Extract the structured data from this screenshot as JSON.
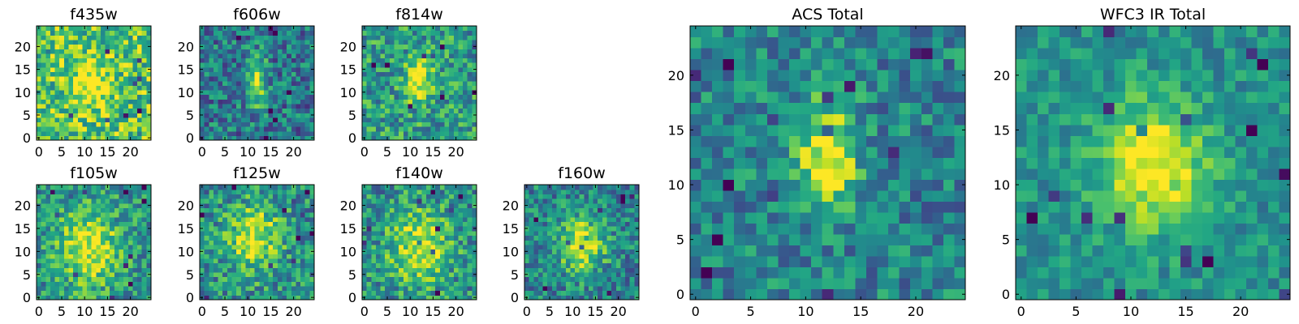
{
  "figure": {
    "background": "#ffffff"
  },
  "colormap": "viridis",
  "chart_data": [
    {
      "type": "heatmap",
      "title": "f435w",
      "xticks": [
        "0",
        "5",
        "10",
        "15",
        "20"
      ],
      "yticks": [
        "0",
        "5",
        "10",
        "15",
        "20"
      ],
      "xlim": [
        -0.5,
        24.5
      ],
      "ylim": [
        -0.5,
        24.5
      ],
      "grid_size": 25,
      "source_center": [
        11.5,
        12
      ],
      "source_sigma": [
        3.0,
        4.0
      ],
      "peak_level": 0.3,
      "background_level": 0.72,
      "noise_level": 0.28
    },
    {
      "type": "heatmap",
      "title": "f606w",
      "xticks": [
        "0",
        "5",
        "10",
        "15",
        "20"
      ],
      "yticks": [
        "0",
        "5",
        "10",
        "15",
        "20"
      ],
      "xlim": [
        -0.5,
        24.5
      ],
      "ylim": [
        -0.5,
        24.5
      ],
      "grid_size": 25,
      "source_center": [
        12,
        12.5
      ],
      "source_sigma": [
        1.5,
        4.0
      ],
      "peak_level": 0.55,
      "background_level": 0.4,
      "noise_level": 0.26
    },
    {
      "type": "heatmap",
      "title": "f814w",
      "xticks": [
        "0",
        "5",
        "10",
        "15",
        "20"
      ],
      "yticks": [
        "0",
        "5",
        "10",
        "15",
        "20"
      ],
      "xlim": [
        -0.5,
        24.5
      ],
      "ylim": [
        -0.5,
        24.5
      ],
      "grid_size": 25,
      "source_center": [
        12,
        12.5
      ],
      "source_sigma": [
        2.0,
        3.5
      ],
      "peak_level": 0.45,
      "background_level": 0.55,
      "noise_level": 0.26
    },
    {
      "type": "heatmap",
      "title": "f105w",
      "xticks": [
        "0",
        "5",
        "10",
        "15",
        "20"
      ],
      "yticks": [
        "0",
        "5",
        "10",
        "15",
        "20"
      ],
      "xlim": [
        -0.5,
        24.5
      ],
      "ylim": [
        -0.5,
        24.5
      ],
      "grid_size": 25,
      "source_center": [
        11,
        11
      ],
      "source_sigma": [
        5.0,
        6.0
      ],
      "peak_level": 0.45,
      "background_level": 0.5,
      "noise_level": 0.24
    },
    {
      "type": "heatmap",
      "title": "f125w",
      "xticks": [
        "0",
        "5",
        "10",
        "15",
        "20"
      ],
      "yticks": [
        "0",
        "5",
        "10",
        "15",
        "20"
      ],
      "xlim": [
        -0.5,
        24.5
      ],
      "ylim": [
        -0.5,
        24.5
      ],
      "grid_size": 25,
      "source_center": [
        11.5,
        13
      ],
      "source_sigma": [
        4.0,
        5.0
      ],
      "peak_level": 0.45,
      "background_level": 0.5,
      "noise_level": 0.26
    },
    {
      "type": "heatmap",
      "title": "f140w",
      "xticks": [
        "0",
        "5",
        "10",
        "15",
        "20"
      ],
      "yticks": [
        "0",
        "5",
        "10",
        "15",
        "20"
      ],
      "xlim": [
        -0.5,
        24.5
      ],
      "ylim": [
        -0.5,
        24.5
      ],
      "grid_size": 25,
      "source_center": [
        12,
        11
      ],
      "source_sigma": [
        4.5,
        5.5
      ],
      "peak_level": 0.45,
      "background_level": 0.5,
      "noise_level": 0.26
    },
    {
      "type": "heatmap",
      "title": "f160w",
      "xticks": [
        "0",
        "5",
        "10",
        "15",
        "20"
      ],
      "yticks": [
        "0",
        "5",
        "10",
        "15",
        "20"
      ],
      "xlim": [
        -0.5,
        24.5
      ],
      "ylim": [
        -0.5,
        24.5
      ],
      "grid_size": 25,
      "source_center": [
        12,
        11.5
      ],
      "source_sigma": [
        3.5,
        4.0
      ],
      "peak_level": 0.55,
      "background_level": 0.45,
      "noise_level": 0.24
    },
    {
      "type": "heatmap",
      "title": "ACS Total",
      "xticks": [
        "0",
        "5",
        "10",
        "15",
        "20"
      ],
      "yticks": [
        "0",
        "5",
        "10",
        "15",
        "20"
      ],
      "xlim": [
        -0.5,
        24.5
      ],
      "ylim": [
        -0.5,
        24.5
      ],
      "grid_size": 25,
      "source_center": [
        12,
        12.5
      ],
      "source_sigma": [
        1.8,
        3.5
      ],
      "peak_level": 0.6,
      "background_level": 0.45,
      "noise_level": 0.22
    },
    {
      "type": "heatmap",
      "title": "WFC3 IR Total",
      "xticks": [
        "0",
        "5",
        "10",
        "15",
        "20"
      ],
      "yticks": [
        "0",
        "5",
        "10",
        "15",
        "20"
      ],
      "xlim": [
        -0.5,
        24.5
      ],
      "ylim": [
        -0.5,
        24.5
      ],
      "grid_size": 25,
      "source_center": [
        12,
        12
      ],
      "source_sigma": [
        3.5,
        4.0
      ],
      "peak_level": 0.55,
      "background_level": 0.5,
      "noise_level": 0.16
    }
  ]
}
